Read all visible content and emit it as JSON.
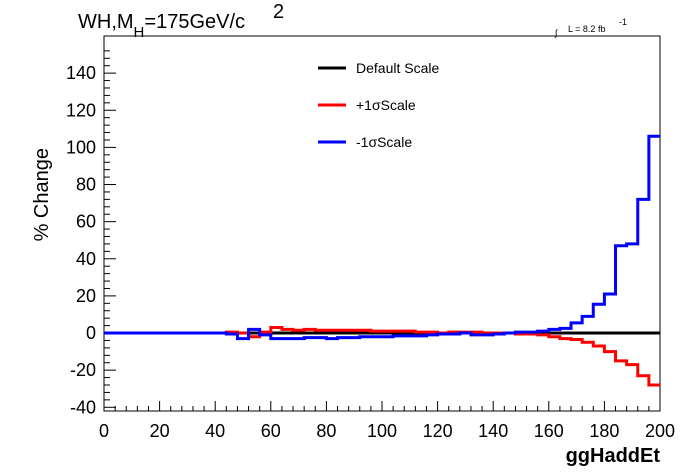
{
  "header": {
    "title_main": "WH,M",
    "title_sub": "H",
    "title_rest": "=175GeV/c",
    "title_sup": "2",
    "lumi_integral": "∫",
    "lumi_text": "L = 8.2 fb",
    "lumi_sup": "-1"
  },
  "chart_data": {
    "type": "line",
    "xlabel": "ggHaddEt",
    "ylabel": "% Change",
    "xlim": [
      0,
      200
    ],
    "ylim": [
      -42,
      160
    ],
    "xticks": [
      0,
      20,
      40,
      60,
      80,
      100,
      120,
      140,
      160,
      180,
      200
    ],
    "yticks": [
      -40,
      -20,
      0,
      20,
      40,
      60,
      80,
      100,
      120,
      140
    ],
    "legend_position": "top-center",
    "bin_edges": [
      0,
      4,
      8,
      12,
      16,
      20,
      24,
      28,
      32,
      36,
      40,
      44,
      48,
      52,
      56,
      60,
      64,
      68,
      72,
      76,
      80,
      84,
      88,
      92,
      96,
      100,
      104,
      108,
      112,
      116,
      120,
      124,
      128,
      132,
      136,
      140,
      144,
      148,
      152,
      156,
      160,
      164,
      168,
      172,
      176,
      180,
      184,
      188,
      192,
      196,
      200
    ],
    "series": [
      {
        "name": "Default Scale",
        "color": "#000000",
        "values": [
          0,
          0,
          0,
          0,
          0,
          0,
          0,
          0,
          0,
          0,
          0,
          0,
          0,
          0,
          0,
          0,
          0,
          0,
          0,
          0,
          0,
          0,
          0,
          0,
          0,
          0,
          0,
          0,
          0,
          0,
          0,
          0,
          0,
          0,
          0,
          0,
          0,
          0,
          0,
          0,
          0,
          0,
          0,
          0,
          0,
          0,
          0,
          0,
          0,
          0
        ]
      },
      {
        "name": "+1σScale",
        "color": "#ff0000",
        "values": [
          0,
          0,
          0,
          0,
          0,
          0,
          0,
          0,
          0,
          0,
          0,
          0.5,
          0,
          -2,
          0.5,
          3,
          2,
          1.5,
          2,
          1.5,
          1.5,
          1.5,
          1.5,
          1.5,
          1,
          1,
          1,
          1,
          0.5,
          0.5,
          0,
          0.5,
          0.5,
          0.5,
          0,
          0,
          0,
          -0.5,
          -0.5,
          -1,
          -2,
          -3,
          -3.5,
          -5,
          -7,
          -10,
          -15,
          -17,
          -23,
          -28
        ]
      },
      {
        "name": "-1σScale",
        "color": "#0000ff",
        "values": [
          0,
          0,
          0,
          0,
          0,
          0,
          0,
          0,
          0,
          0,
          0,
          -0.5,
          -3,
          2,
          -1,
          -3,
          -3,
          -3,
          -2.5,
          -2.5,
          -3,
          -2.5,
          -2.5,
          -2,
          -2,
          -2,
          -1.5,
          -1.5,
          -1.5,
          -1,
          -0.5,
          -0.5,
          0,
          -1,
          -1,
          -0.5,
          0,
          0.5,
          0.5,
          1,
          2,
          2.5,
          5.5,
          9,
          15.5,
          21,
          47,
          48,
          72,
          106
        ]
      }
    ]
  }
}
